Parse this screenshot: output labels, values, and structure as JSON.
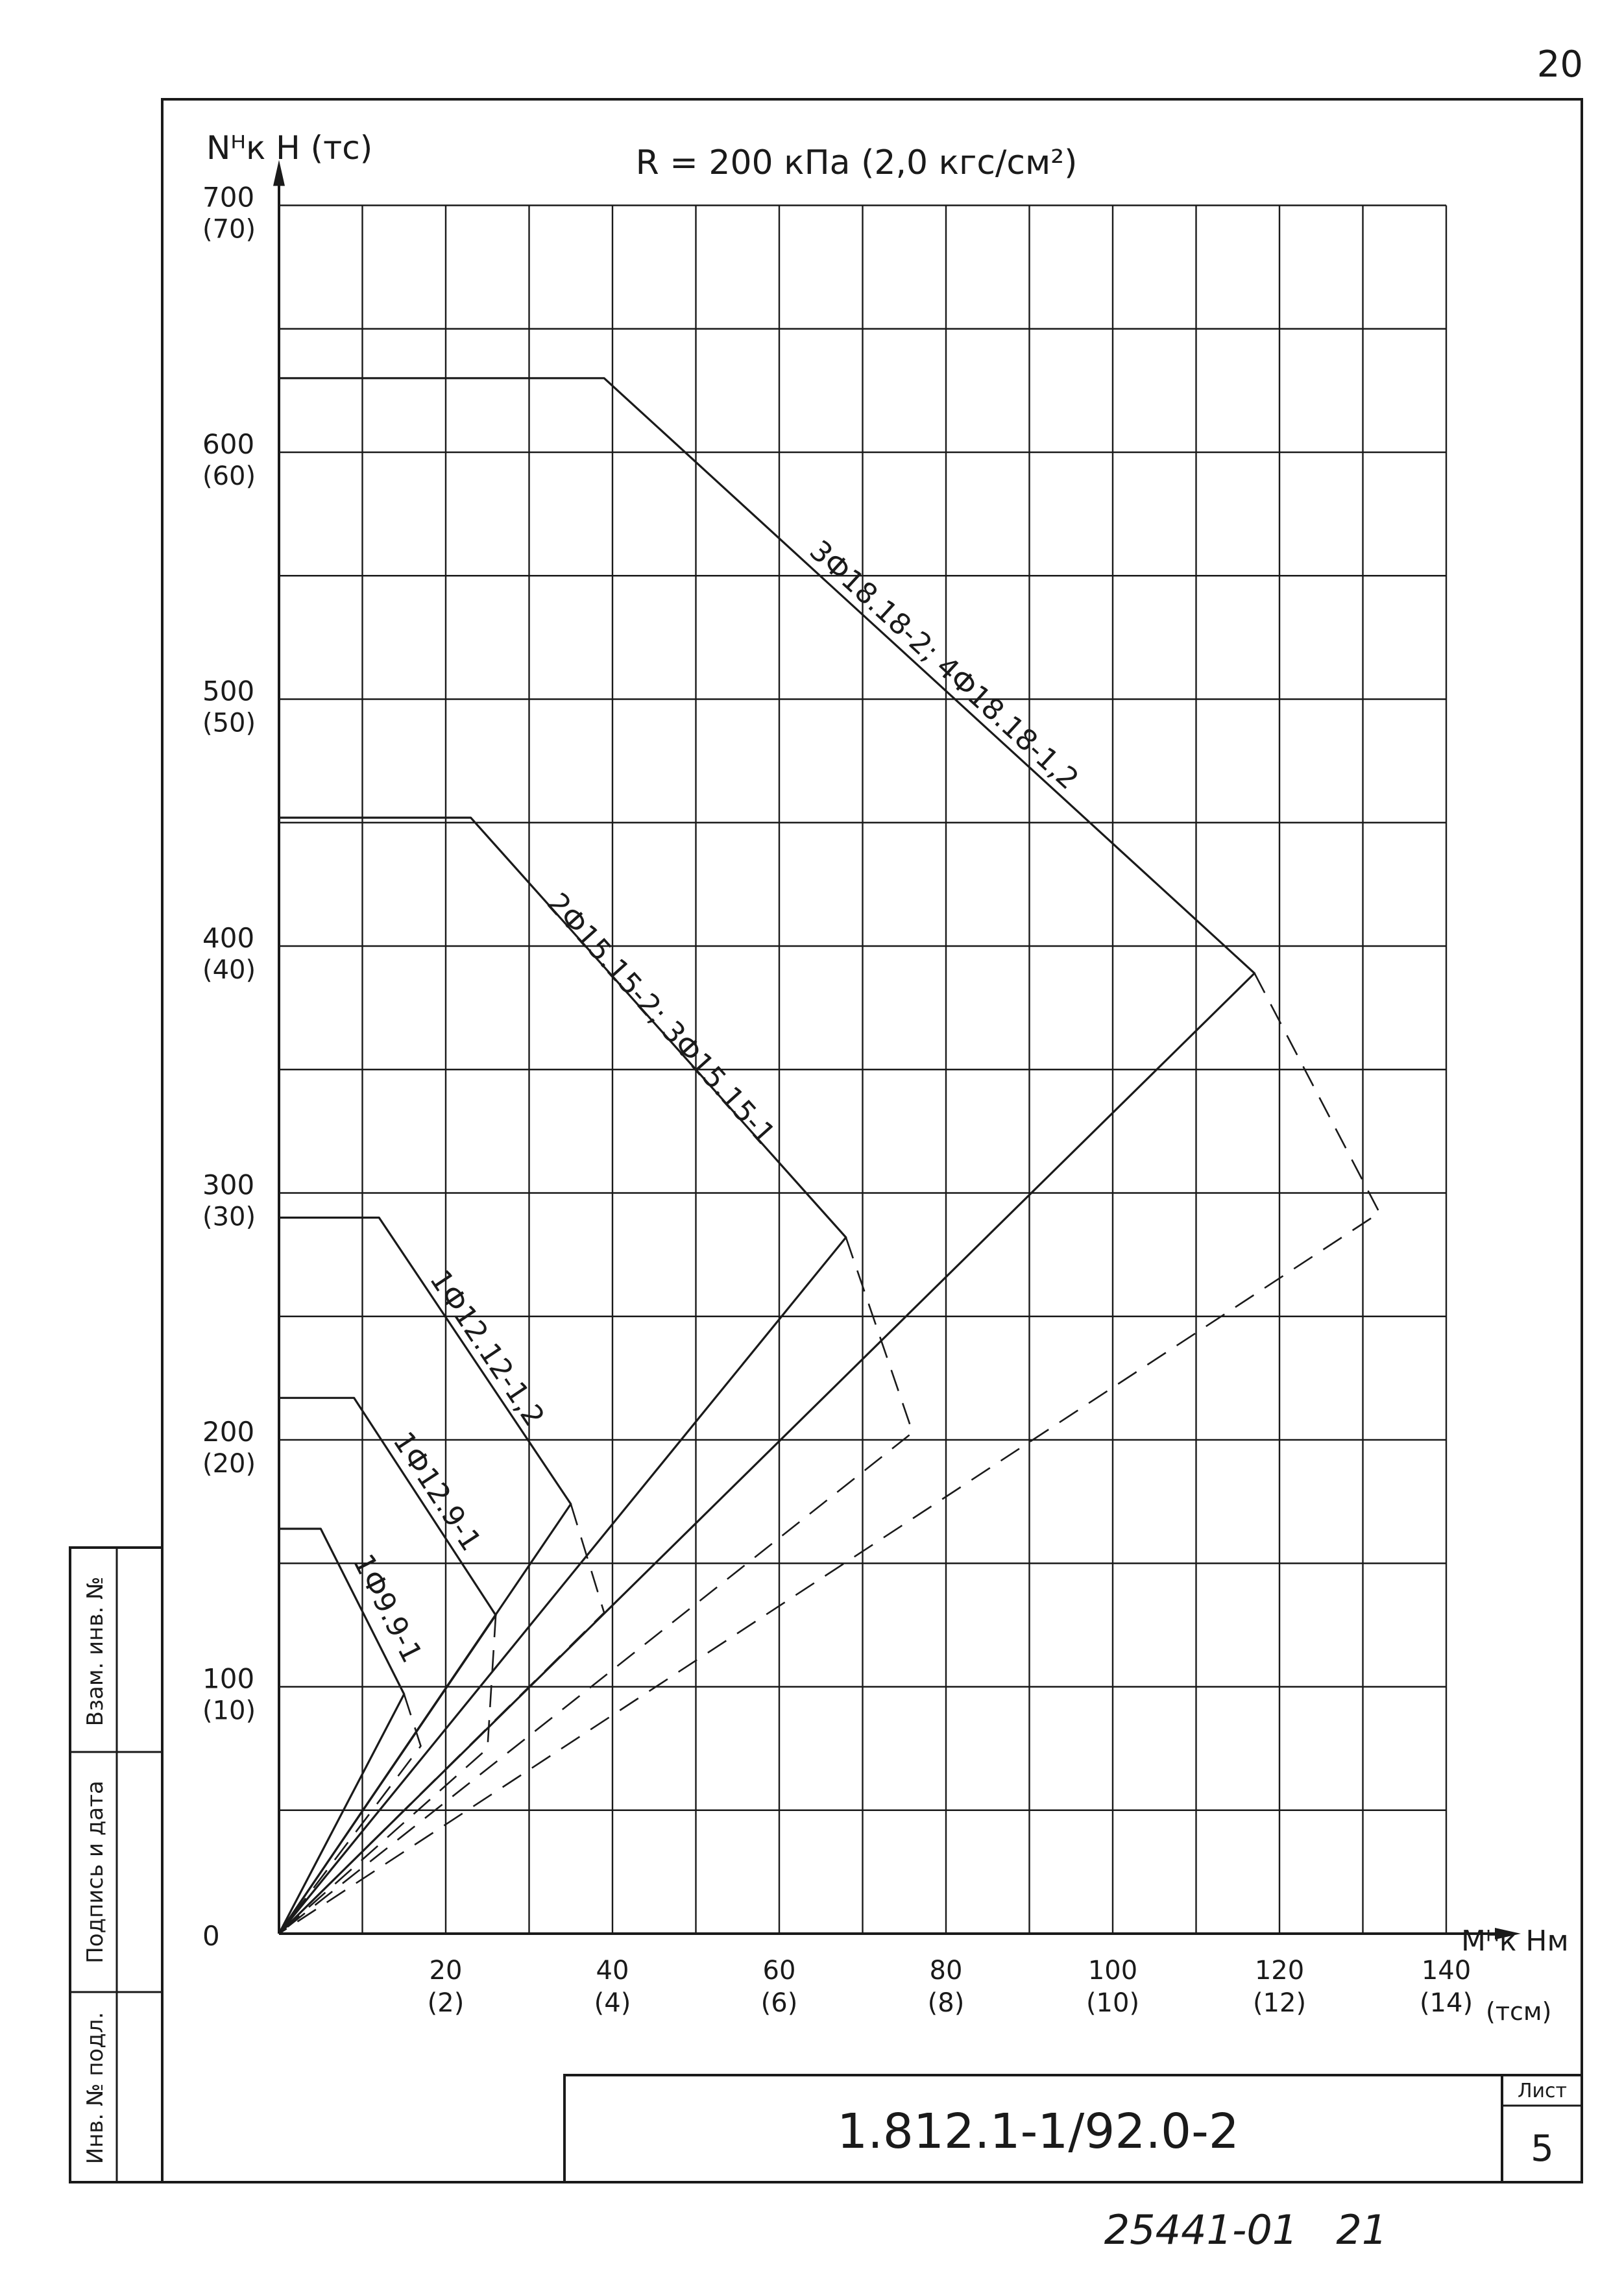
{
  "page_number": "20",
  "title": "R = 200 кПа (2,0 кгс/см²)",
  "y_axis_label": "Nᴴк Н (тс)",
  "x_axis_label": "Мᴴк Нм",
  "x_axis_unit_note": "(тсм)",
  "stamp": {
    "document_code": "1.812.1-1/92.0-2",
    "sheet_label": "Лист",
    "sheet_number": "5",
    "bottom_number": "25441-01   21"
  },
  "side_stamp": {
    "inventory_original": "Инв. № подл.",
    "signature_date": "Подпись и дата",
    "replaces_inventory": "Взам. инв. №"
  },
  "chart_data": {
    "type": "line",
    "title": "R = 200 кПа (2,0 кгс/см²)",
    "xlabel": "Мᴴк Нм",
    "ylabel": "Nᴴк Н (тс)",
    "xlim": [
      0,
      140
    ],
    "ylim": [
      0,
      700
    ],
    "grid": true,
    "x_ticks": [
      {
        "value": 20,
        "label": "20",
        "sub": "(2)"
      },
      {
        "value": 40,
        "label": "40",
        "sub": "(4)"
      },
      {
        "value": 60,
        "label": "60",
        "sub": "(6)"
      },
      {
        "value": 80,
        "label": "80",
        "sub": "(8)"
      },
      {
        "value": 100,
        "label": "100",
        "sub": "(10)"
      },
      {
        "value": 120,
        "label": "120",
        "sub": "(12)"
      },
      {
        "value": 140,
        "label": "140",
        "sub": "(14)"
      }
    ],
    "y_ticks": [
      {
        "value": 0,
        "label": "0",
        "sub": ""
      },
      {
        "value": 100,
        "label": "100",
        "sub": "(10)"
      },
      {
        "value": 200,
        "label": "200",
        "sub": "(20)"
      },
      {
        "value": 300,
        "label": "300",
        "sub": "(30)"
      },
      {
        "value": 400,
        "label": "400",
        "sub": "(40)"
      },
      {
        "value": 500,
        "label": "500",
        "sub": "(50)"
      },
      {
        "value": 600,
        "label": "600",
        "sub": "(60)"
      },
      {
        "value": 700,
        "label": "700",
        "sub": "(70)"
      }
    ],
    "series": [
      {
        "name": "1Ф9.9-1",
        "solid": [
          [
            0,
            164
          ],
          [
            5,
            164
          ],
          [
            15,
            97
          ],
          [
            0,
            0
          ]
        ],
        "dashed": [
          [
            15,
            97
          ],
          [
            17,
            76
          ],
          [
            0,
            0
          ]
        ]
      },
      {
        "name": "1Ф12.9-1",
        "solid": [
          [
            0,
            217
          ],
          [
            9,
            217
          ],
          [
            26,
            129
          ],
          [
            0,
            0
          ]
        ],
        "dashed": [
          [
            26,
            129
          ],
          [
            25,
            75
          ],
          [
            0,
            0
          ]
        ]
      },
      {
        "name": "1Ф12.12-1,2",
        "solid": [
          [
            0,
            290
          ],
          [
            12,
            290
          ],
          [
            35,
            174
          ],
          [
            0,
            0
          ]
        ],
        "dashed": [
          [
            35,
            174
          ],
          [
            39,
            130
          ],
          [
            0,
            0
          ]
        ]
      },
      {
        "name": "2Ф15.15-2; 3Ф15.15-1",
        "solid": [
          [
            0,
            452
          ],
          [
            23,
            452
          ],
          [
            68,
            282
          ],
          [
            0,
            0
          ]
        ],
        "dashed": [
          [
            68,
            282
          ],
          [
            76,
            203
          ],
          [
            0,
            0
          ]
        ]
      },
      {
        "name": "3Ф18.18-2; 4Ф18.18-1,2",
        "solid": [
          [
            0,
            630
          ],
          [
            39,
            630
          ],
          [
            117,
            389
          ],
          [
            0,
            0
          ]
        ],
        "dashed": [
          [
            117,
            389
          ],
          [
            132,
            292
          ],
          [
            0,
            0
          ]
        ]
      }
    ],
    "annotations": [
      {
        "text": "1Ф9.9-1",
        "x": 12,
        "y": 130
      },
      {
        "text": "1Ф12.9-1",
        "x": 18,
        "y": 177
      },
      {
        "text": "1Ф12.12-1,2",
        "x": 24,
        "y": 235
      },
      {
        "text": "2Ф15.15-2; 3Ф15.15-1",
        "x": 45,
        "y": 368
      },
      {
        "text": "3Ф18.18-2; 4Ф18.18-1,2",
        "x": 79,
        "y": 511
      }
    ]
  }
}
